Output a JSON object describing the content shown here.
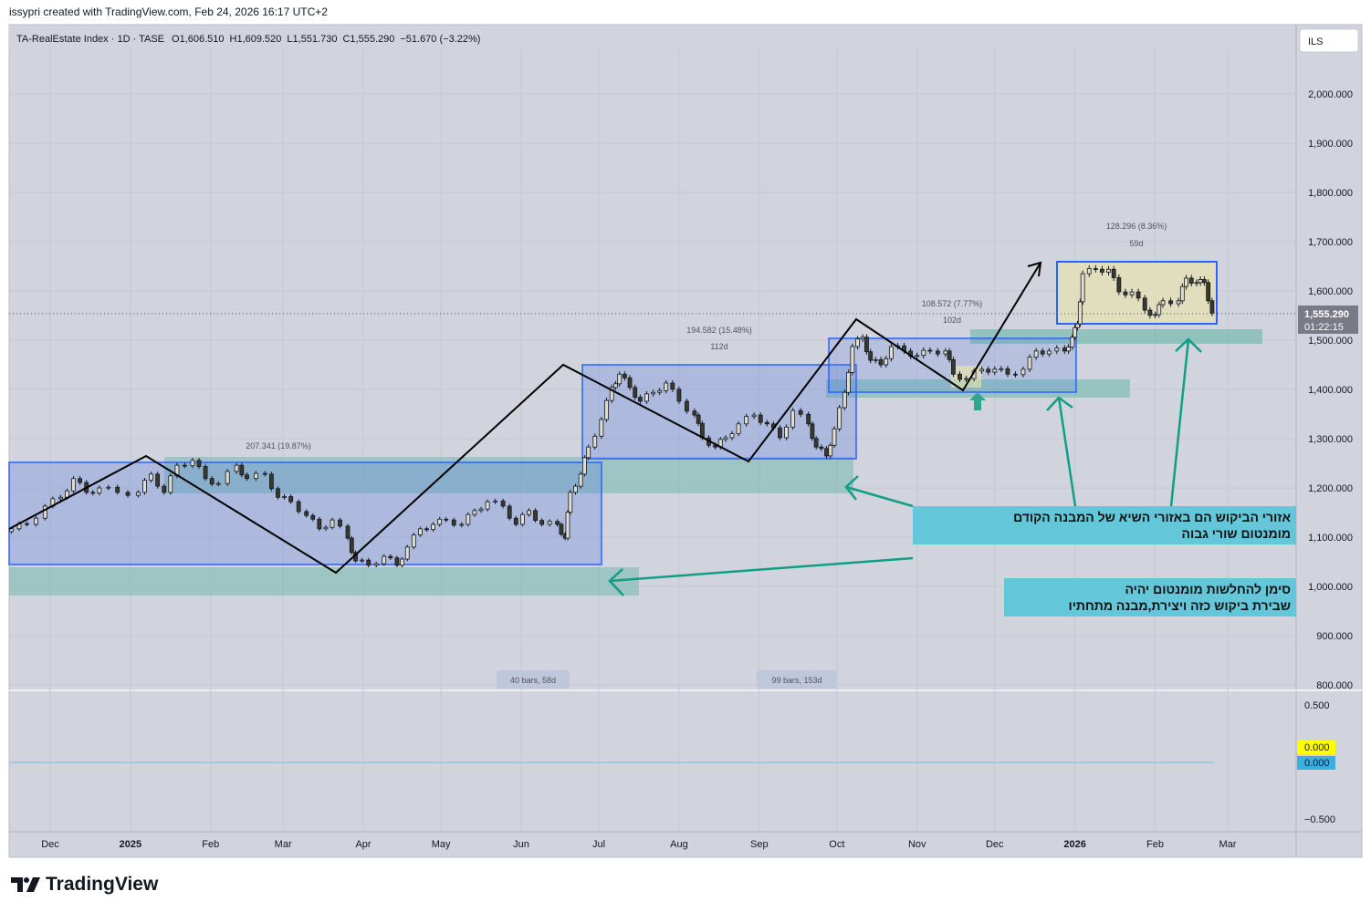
{
  "credit": "issypri created with TradingView.com, Feb 24, 2026 16:17 UTC+2",
  "legend": {
    "symbol": "TA-RealEstate Index · 1D · TASE",
    "open": "O1,606.510",
    "high": "H1,609.520",
    "low": "L1,551.730",
    "close": "C1,555.290",
    "change": "−51.670 (−3.22%)"
  },
  "currency_button": "ILS",
  "last_price": {
    "value": "1,555.290",
    "countdown": "01:22:15"
  },
  "indicator": {
    "ticks": [
      "0.500",
      "−0.500"
    ],
    "value_yellow": "0.000",
    "value_blue": "0.000",
    "colors": {
      "yellow": "#ffff00",
      "blue": "#3ab0e2"
    }
  },
  "measurements": [
    {
      "change": "207.341 (19.87%)"
    },
    {
      "change": "194.582 (15.48%)",
      "duration": "112d"
    },
    {
      "change": "108.572 (7.77%)",
      "duration": "102d"
    },
    {
      "change": "128.296 (8.36%)",
      "duration": "59d"
    }
  ],
  "range_pills": [
    "40 bars, 58d",
    "99 bars, 153d"
  ],
  "notes": [
    {
      "line1": "אזורי הביקוש הם באזורי השיא של המבנה הקודם",
      "line2": "מומנטום שורי גבוה"
    },
    {
      "line1": "סימן להחלשות מומנטום יהיה",
      "line2": "שבירת ביקוש כזה ויצירת,מבנה מתחתיו"
    }
  ],
  "logo": "TradingView",
  "colors": {
    "background": "#d1d4dc",
    "up": "#d8d8c8",
    "down": "#131722",
    "box_border": "#2962ff",
    "zone": "#5fb3a3",
    "arrow": "#109e86",
    "note_bg": "#64c6d9"
  },
  "chart_data": {
    "type": "candlestick",
    "title": "TA-RealEstate Index · 1D · TASE",
    "x_unit": "days since 2024-12-01",
    "x_ticks": [
      "Dec",
      "2025",
      "Feb",
      "Mar",
      "Apr",
      "May",
      "Jun",
      "Jul",
      "Aug",
      "Sep",
      "Oct",
      "Nov",
      "Dec",
      "2026",
      "Feb",
      "Mar"
    ],
    "x_tick_days": [
      0,
      31,
      62,
      90,
      121,
      151,
      182,
      212,
      243,
      274,
      304,
      335,
      365,
      396,
      427,
      455
    ],
    "y_ticks": [
      "2,000.000",
      "1,900.000",
      "1,800.000",
      "1,700.000",
      "1,600.000",
      "1,500.000",
      "1,400.000",
      "1,300.000",
      "1,200.000",
      "1,100.000",
      "1,000.000",
      "900.000",
      "800.000"
    ],
    "y_tick_values": [
      2000,
      1900,
      1800,
      1700,
      1600,
      1500,
      1400,
      1300,
      1200,
      1100,
      1000,
      900,
      800
    ],
    "ylim": [
      780,
      2120
    ],
    "last_close": 1555.29,
    "points": [
      [
        -15,
        1117
      ],
      [
        -9,
        1126
      ],
      [
        -2,
        1163
      ],
      [
        4,
        1181
      ],
      [
        9,
        1219
      ],
      [
        14,
        1191
      ],
      [
        19,
        1200
      ],
      [
        26,
        1191
      ],
      [
        34,
        1191
      ],
      [
        39,
        1228
      ],
      [
        44,
        1191
      ],
      [
        49,
        1246
      ],
      [
        55,
        1256
      ],
      [
        60,
        1219
      ],
      [
        65,
        1209
      ],
      [
        72,
        1246
      ],
      [
        76,
        1219
      ],
      [
        83,
        1228
      ],
      [
        88,
        1181
      ],
      [
        93,
        1172
      ],
      [
        99,
        1144
      ],
      [
        104,
        1117
      ],
      [
        109,
        1135
      ],
      [
        115,
        1098
      ],
      [
        118,
        1052
      ],
      [
        123,
        1043
      ],
      [
        129,
        1061
      ],
      [
        134,
        1043
      ],
      [
        138,
        1080
      ],
      [
        143,
        1117
      ],
      [
        148,
        1126
      ],
      [
        153,
        1135
      ],
      [
        159,
        1126
      ],
      [
        164,
        1154
      ],
      [
        169,
        1172
      ],
      [
        175,
        1163
      ],
      [
        180,
        1126
      ],
      [
        185,
        1154
      ],
      [
        190,
        1126
      ],
      [
        196,
        1126
      ],
      [
        199,
        1098
      ],
      [
        201,
        1191
      ],
      [
        205,
        1228
      ],
      [
        208,
        1283
      ],
      [
        213,
        1339
      ],
      [
        217,
        1404
      ],
      [
        220,
        1431
      ],
      [
        224,
        1404
      ],
      [
        228,
        1376
      ],
      [
        233,
        1394
      ],
      [
        238,
        1413
      ],
      [
        243,
        1376
      ],
      [
        249,
        1348
      ],
      [
        252,
        1302
      ],
      [
        257,
        1283
      ],
      [
        261,
        1302
      ],
      [
        266,
        1330
      ],
      [
        272,
        1348
      ],
      [
        277,
        1330
      ],
      [
        282,
        1302
      ],
      [
        287,
        1357
      ],
      [
        293,
        1330
      ],
      [
        296,
        1283
      ],
      [
        300,
        1265
      ],
      [
        303,
        1320
      ],
      [
        307,
        1394
      ],
      [
        310,
        1487
      ],
      [
        314,
        1506
      ],
      [
        317,
        1459
      ],
      [
        321,
        1450
      ],
      [
        325,
        1487
      ],
      [
        330,
        1478
      ],
      [
        335,
        1469
      ],
      [
        340,
        1478
      ],
      [
        346,
        1478
      ],
      [
        349,
        1431
      ],
      [
        354,
        1422
      ],
      [
        360,
        1441
      ],
      [
        365,
        1441
      ],
      [
        370,
        1431
      ],
      [
        376,
        1441
      ],
      [
        381,
        1478
      ],
      [
        386,
        1478
      ],
      [
        392,
        1478
      ],
      [
        395,
        1506
      ],
      [
        397,
        1533
      ],
      [
        399,
        1635
      ],
      [
        404,
        1644
      ],
      [
        409,
        1644
      ],
      [
        413,
        1598
      ],
      [
        418,
        1598
      ],
      [
        423,
        1561
      ],
      [
        427,
        1552
      ],
      [
        430,
        1580
      ],
      [
        436,
        1580
      ],
      [
        439,
        1626
      ],
      [
        443,
        1617
      ],
      [
        446,
        1617
      ],
      [
        449,
        1555
      ]
    ]
  }
}
